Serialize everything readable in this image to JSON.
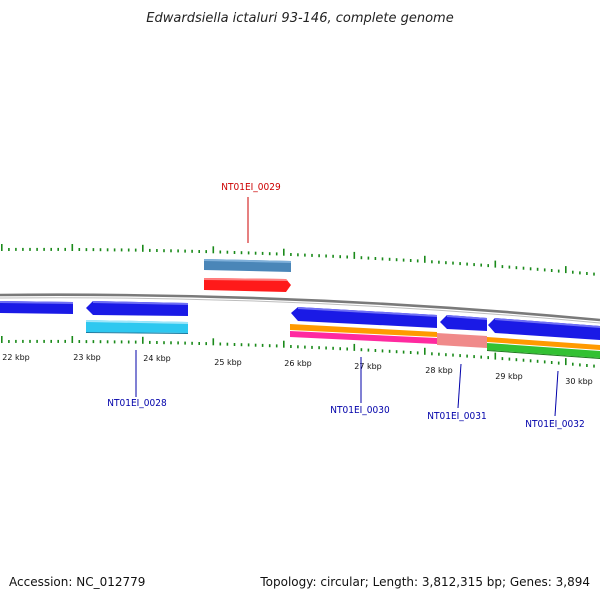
{
  "title": "Edwardsiella ictaluri 93-146, complete genome",
  "accession": "Accession: NC_012779",
  "summary": "Topology: circular; Length: 3,812,315 bp; Genes: 3,894",
  "colors": {
    "tick": "#1a8a1a",
    "backbone": "#808080",
    "gene_blue": "#1a1ae6",
    "gene_red_label": "#cc0000",
    "gene_blue_label": "#0000aa",
    "cyan": "#2ec8f0",
    "steel": "#4a86b8",
    "red": "#ff1a1a",
    "orange": "#ff9a00",
    "magenta": "#ff2aa0",
    "salmon": "#f08a8a",
    "green": "#33c133"
  },
  "kbp_labels": [
    "22 kbp",
    "23 kbp",
    "24 kbp",
    "25 kbp",
    "26 kbp",
    "27 kbp",
    "28 kbp",
    "29 kbp",
    "30 kbp"
  ],
  "gene_labels": [
    {
      "id": "NT01EI_0029",
      "color": "red"
    },
    {
      "id": "NT01EI_0028",
      "color": "blue"
    },
    {
      "id": "NT01EI_0030",
      "color": "blue"
    },
    {
      "id": "NT01EI_0031",
      "color": "blue"
    },
    {
      "id": "NT01EI_0032",
      "color": "blue"
    }
  ]
}
